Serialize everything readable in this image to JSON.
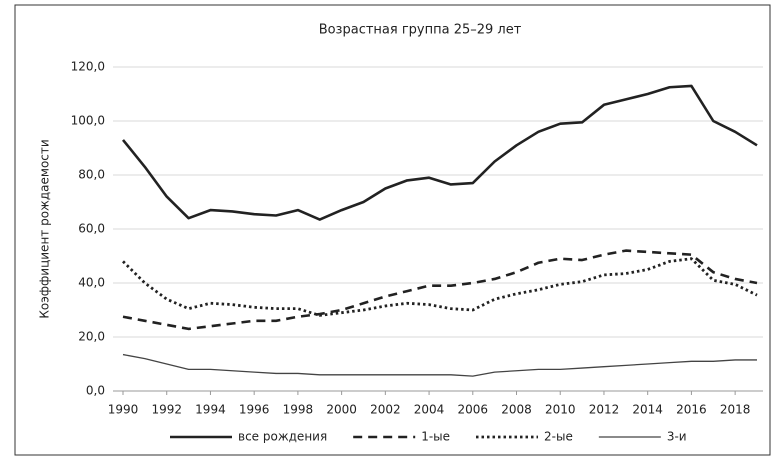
{
  "chart_data": {
    "type": "line",
    "title": "Возрастная группа 25–29 лет",
    "y_label": "Коэффициент рождаемости",
    "x": [
      1990,
      1991,
      1992,
      1993,
      1994,
      1995,
      1996,
      1997,
      1998,
      1999,
      2000,
      2001,
      2002,
      2003,
      2004,
      2005,
      2006,
      2007,
      2008,
      2009,
      2010,
      2011,
      2012,
      2013,
      2014,
      2015,
      2016,
      2017,
      2018,
      2019
    ],
    "series": [
      {
        "name": "все рождения",
        "color": "#222222",
        "style": "solid",
        "values": [
          93,
          83,
          72,
          64,
          67,
          66.5,
          65.5,
          65,
          67,
          63.5,
          67,
          70,
          75,
          78,
          79,
          76.5,
          77,
          85,
          91,
          96,
          99,
          99.5,
          106,
          108,
          110,
          112.5,
          113,
          100,
          96,
          91
        ]
      },
      {
        "name": "1-ые",
        "color": "#222222",
        "style": "dashed",
        "values": [
          27.5,
          26,
          24.5,
          23,
          24,
          25,
          26,
          26,
          27.5,
          28.5,
          30,
          32.5,
          35,
          37,
          39,
          39,
          40,
          41.5,
          44,
          47.5,
          49,
          48.5,
          50.5,
          52,
          51.5,
          51,
          50.5,
          44,
          41.5,
          40
        ]
      },
      {
        "name": "2-ые",
        "color": "#222222",
        "style": "dotted",
        "values": [
          48,
          40,
          34,
          30.5,
          32.5,
          32,
          31,
          30.5,
          30.5,
          28,
          29,
          30,
          31.5,
          32.5,
          32,
          30.5,
          30,
          34,
          36,
          37.5,
          39.5,
          40.5,
          43,
          43.5,
          45,
          48,
          49,
          41,
          39.5,
          35.5
        ]
      },
      {
        "name": "3-и",
        "color": "#444444",
        "style": "thin",
        "values": [
          13.5,
          12,
          10,
          8,
          8,
          7.5,
          7,
          6.5,
          6.5,
          6,
          6,
          6,
          6,
          6,
          6,
          6,
          5.5,
          7,
          7.5,
          8,
          8,
          8.5,
          9,
          9.5,
          10,
          10.5,
          11,
          11,
          11.5,
          11.5
        ]
      }
    ],
    "xlim": [
      1990,
      2019
    ],
    "xticks": [
      1990,
      1992,
      1994,
      1996,
      1998,
      2000,
      2002,
      2004,
      2006,
      2008,
      2010,
      2012,
      2014,
      2016,
      2018
    ],
    "ylim": [
      0,
      120
    ],
    "yticks": [
      {
        "value": 0,
        "label": "0,0"
      },
      {
        "value": 20,
        "label": "20,0"
      },
      {
        "value": 40,
        "label": "40,0"
      },
      {
        "value": 60,
        "label": "60,0"
      },
      {
        "value": 80,
        "label": "80,0"
      },
      {
        "value": 100,
        "label": "100,0"
      },
      {
        "value": 120,
        "label": "120,0"
      }
    ],
    "grid": true,
    "legend": "bottom"
  }
}
